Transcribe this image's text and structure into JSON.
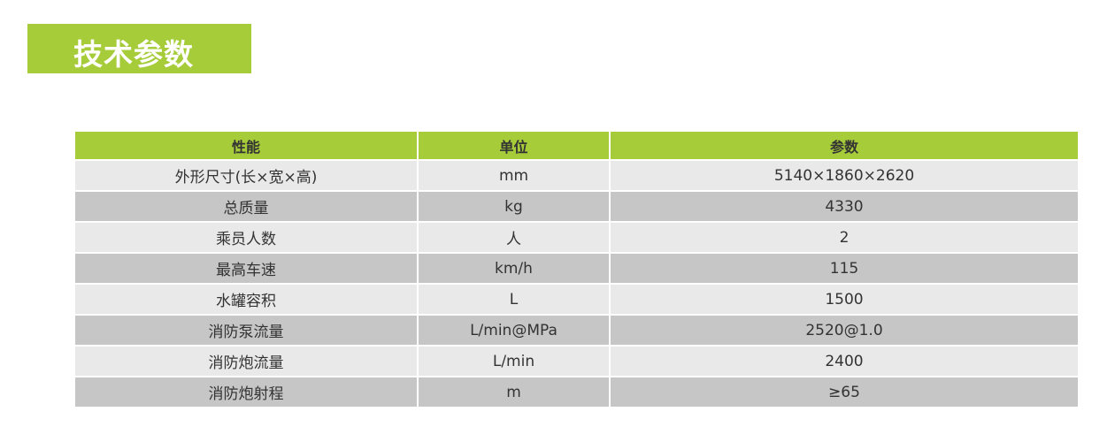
{
  "title": "技术参数",
  "colors": {
    "accent": "#a6cc3a",
    "row_light": "#e9e9e9",
    "row_dark": "#c6c6c6"
  },
  "table": {
    "headers": [
      "性能",
      "单位",
      "参数"
    ],
    "rows": [
      [
        "外形尺寸(长×宽×高)",
        "mm",
        "5140×1860×2620"
      ],
      [
        "总质量",
        "kg",
        "4330"
      ],
      [
        "乘员人数",
        "人",
        "2"
      ],
      [
        "最高车速",
        "km/h",
        "115"
      ],
      [
        "水罐容积",
        "L",
        "1500"
      ],
      [
        "消防泵流量",
        "L/min@MPa",
        "2520@1.0"
      ],
      [
        "消防炮流量",
        "L/min",
        "2400"
      ],
      [
        "消防炮射程",
        "m",
        "≥65"
      ]
    ]
  }
}
